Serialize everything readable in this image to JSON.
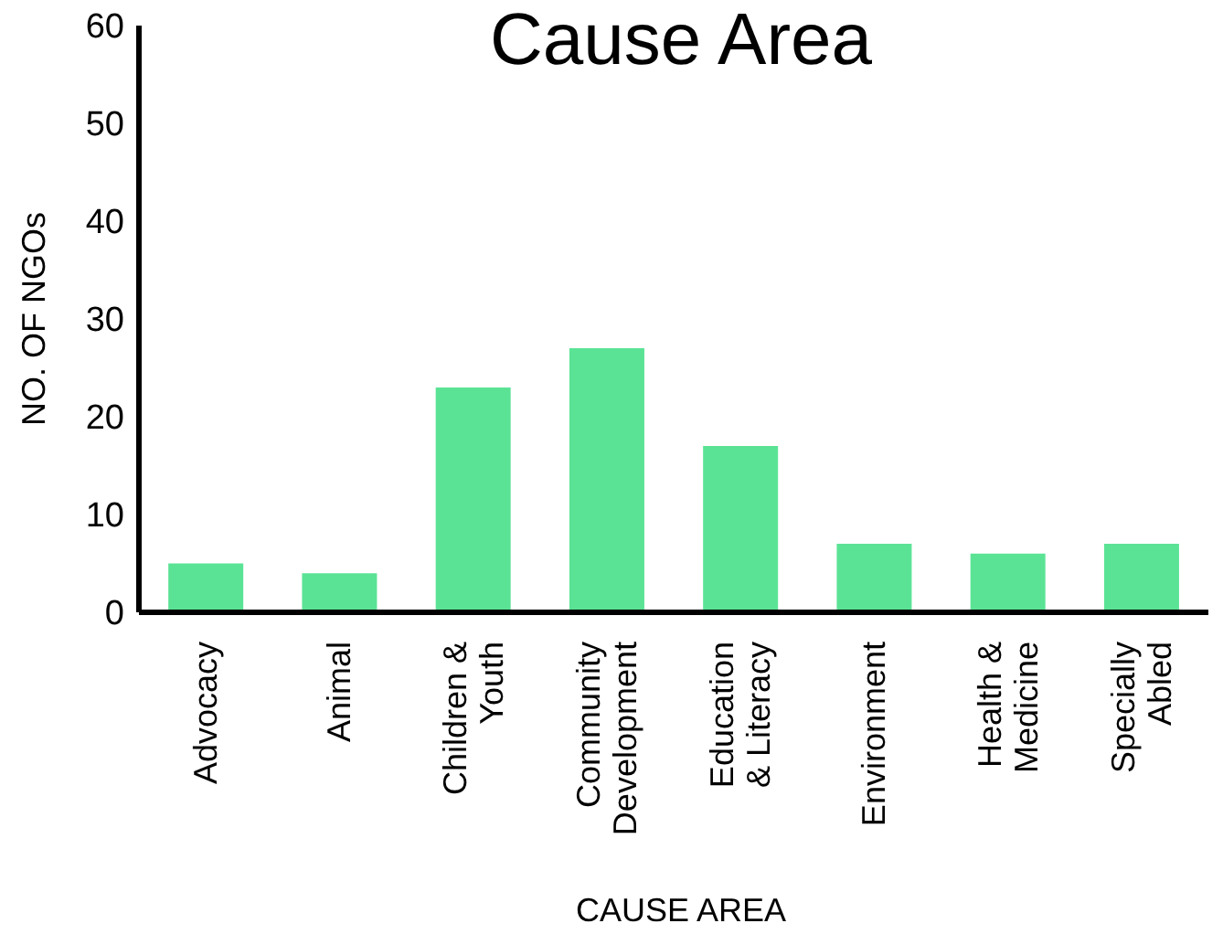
{
  "chart_data": {
    "type": "bar",
    "title": "Cause Area",
    "xlabel": "CAUSE AREA",
    "ylabel": "NO. OF NGOs",
    "categories": [
      "Advocacy",
      "Animal",
      "Children & Youth",
      "Community Development",
      "Education & Literacy",
      "Environment",
      "Health & Medicine",
      "Specially Abled"
    ],
    "values": [
      5,
      4,
      23,
      27,
      17,
      7,
      6,
      7
    ],
    "color": "#5be395",
    "ylim": [
      0,
      60
    ],
    "yticks": [
      0,
      10,
      20,
      30,
      40,
      50,
      60
    ],
    "grid": false,
    "legend": false
  }
}
